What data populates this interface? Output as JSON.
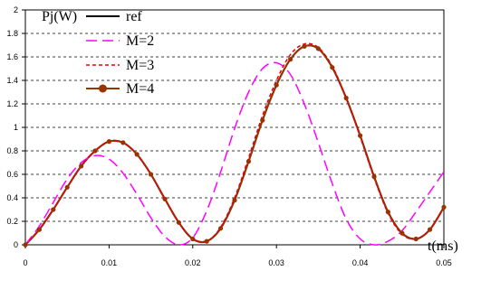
{
  "chart_data": {
    "type": "line",
    "title": "",
    "xlabel": "t(ms)",
    "ylabel": "Pj(W)",
    "xlim": [
      0,
      0.05
    ],
    "ylim": [
      0,
      2
    ],
    "xticks": [
      "0",
      "0.01",
      "0.02",
      "0.03",
      "0.04",
      "0.05"
    ],
    "yticks": [
      "0",
      "0.2",
      "0.4",
      "0.6",
      "0.8",
      "1",
      "1.2",
      "1.4",
      "1.6",
      "1.8",
      "2"
    ],
    "grid": "horizontal dashed",
    "legend_position": "top-left",
    "series": [
      {
        "name": "ref",
        "color": "#000000",
        "style": "solid",
        "x": [
          0,
          0.00167,
          0.00333,
          0.005,
          0.00667,
          0.00833,
          0.01,
          0.01167,
          0.01333,
          0.015,
          0.01667,
          0.01833,
          0.02,
          0.02167,
          0.02333,
          0.025,
          0.02667,
          0.02833,
          0.03,
          0.03167,
          0.03333,
          0.035,
          0.03667,
          0.03833,
          0.04,
          0.04167,
          0.04333,
          0.045,
          0.04667,
          0.04833,
          0.05
        ],
        "y": [
          0,
          0.13,
          0.3,
          0.49,
          0.67,
          0.8,
          0.88,
          0.87,
          0.77,
          0.6,
          0.39,
          0.19,
          0.05,
          0.03,
          0.14,
          0.38,
          0.71,
          1.06,
          1.36,
          1.58,
          1.69,
          1.67,
          1.51,
          1.25,
          0.93,
          0.58,
          0.28,
          0.1,
          0.05,
          0.13,
          0.32
        ]
      },
      {
        "name": "M=2",
        "color": "#ff00ff",
        "style": "dashed",
        "x": [
          0,
          0.00167,
          0.00333,
          0.005,
          0.00667,
          0.00833,
          0.01,
          0.01167,
          0.01333,
          0.015,
          0.01667,
          0.01833,
          0.02,
          0.02167,
          0.02333,
          0.025,
          0.02667,
          0.02833,
          0.03,
          0.03167,
          0.03333,
          0.035,
          0.03667,
          0.03833,
          0.04,
          0.04167,
          0.04333,
          0.045,
          0.04667,
          0.04833,
          0.05
        ],
        "y": [
          0,
          0.16,
          0.36,
          0.56,
          0.7,
          0.76,
          0.73,
          0.61,
          0.43,
          0.23,
          0.07,
          0.0,
          0.06,
          0.29,
          0.62,
          0.99,
          1.3,
          1.5,
          1.55,
          1.45,
          1.2,
          0.87,
          0.52,
          0.22,
          0.05,
          0.0,
          0.03,
          0.12,
          0.28,
          0.45,
          0.62
        ]
      },
      {
        "name": "M=3",
        "color": "#e8000f",
        "style": "dotted",
        "x": [
          0,
          0.00167,
          0.00333,
          0.005,
          0.00667,
          0.00833,
          0.01,
          0.01167,
          0.01333,
          0.015,
          0.01667,
          0.01833,
          0.02,
          0.02167,
          0.02333,
          0.025,
          0.02667,
          0.02833,
          0.03,
          0.03167,
          0.03333,
          0.035,
          0.03667,
          0.03833,
          0.04,
          0.04167,
          0.04333,
          0.045,
          0.04667,
          0.04833,
          0.05
        ],
        "y": [
          0,
          0.13,
          0.3,
          0.49,
          0.67,
          0.8,
          0.88,
          0.87,
          0.77,
          0.6,
          0.39,
          0.19,
          0.05,
          0.03,
          0.15,
          0.4,
          0.74,
          1.1,
          1.4,
          1.62,
          1.71,
          1.68,
          1.52,
          1.25,
          0.92,
          0.57,
          0.27,
          0.09,
          0.05,
          0.13,
          0.32
        ]
      },
      {
        "name": "M=4",
        "color": "#993300",
        "style": "solid-markers",
        "x": [
          0,
          0.00167,
          0.00333,
          0.005,
          0.00667,
          0.00833,
          0.01,
          0.01167,
          0.01333,
          0.015,
          0.01667,
          0.01833,
          0.02,
          0.02167,
          0.02333,
          0.025,
          0.02667,
          0.02833,
          0.03,
          0.03167,
          0.03333,
          0.035,
          0.03667,
          0.03833,
          0.04,
          0.04167,
          0.04333,
          0.045,
          0.04667,
          0.04833,
          0.05
        ],
        "y": [
          0,
          0.13,
          0.3,
          0.49,
          0.67,
          0.8,
          0.88,
          0.87,
          0.77,
          0.6,
          0.39,
          0.19,
          0.05,
          0.03,
          0.14,
          0.38,
          0.71,
          1.06,
          1.36,
          1.58,
          1.69,
          1.67,
          1.51,
          1.25,
          0.93,
          0.58,
          0.28,
          0.1,
          0.05,
          0.13,
          0.32
        ]
      }
    ]
  }
}
